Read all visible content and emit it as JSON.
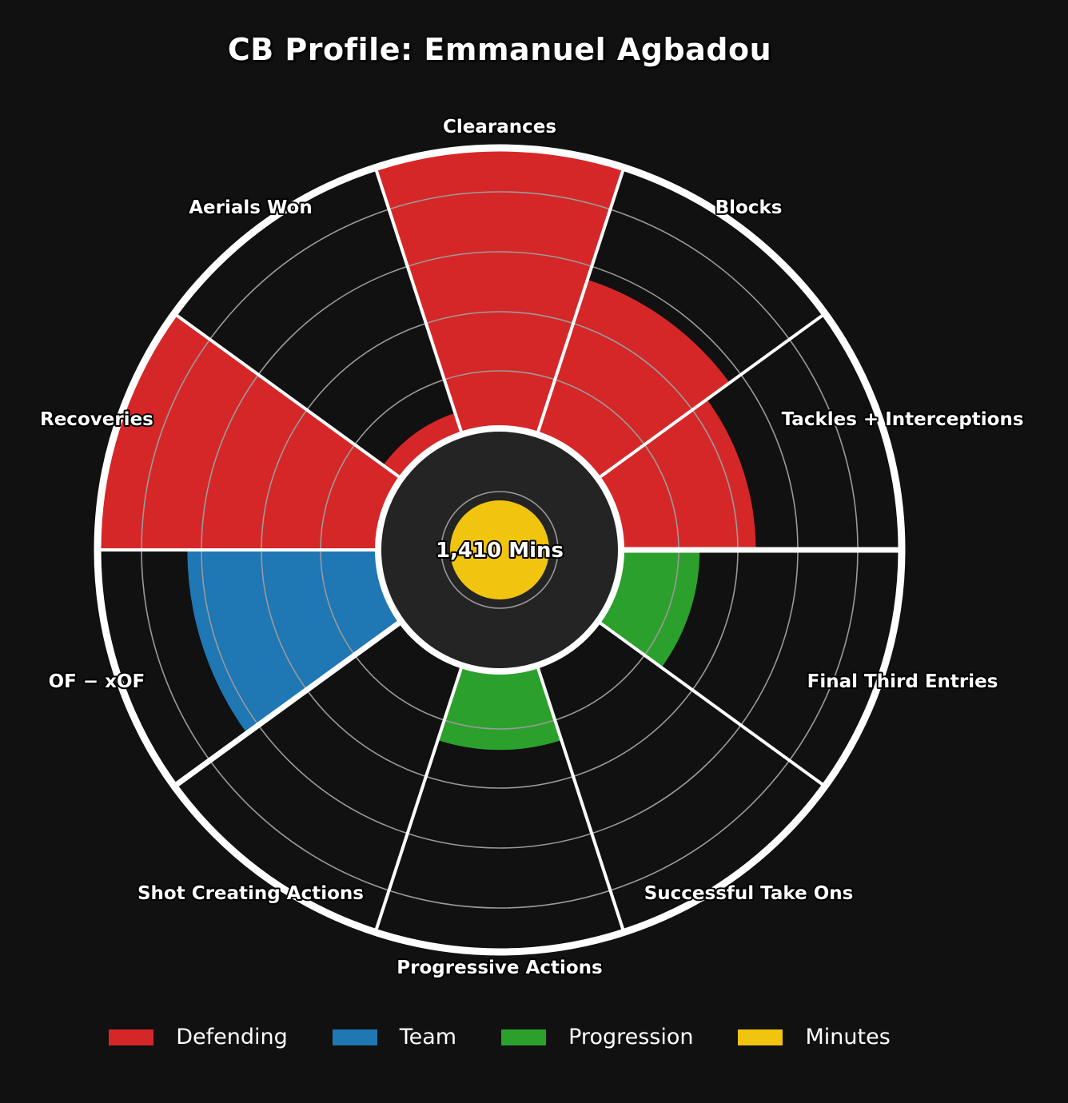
{
  "chart_data": {
    "type": "radar-bar",
    "title": "CB Profile: Emmanuel Agbadou",
    "center_label": "1,410 Mins",
    "minutes_value": 1410,
    "scale_max": 100,
    "categories": [
      {
        "name": "Clearances",
        "group": "Defending",
        "value": 100
      },
      {
        "name": "Blocks",
        "group": "Defending",
        "value": 58
      },
      {
        "name": "Tackles + Interceptions",
        "group": "Defending",
        "value": 48
      },
      {
        "name": "Final Third Entries",
        "group": "Progression",
        "value": 28
      },
      {
        "name": "Successful Take Ons",
        "group": "Progression",
        "value": 0
      },
      {
        "name": "Progressive Actions",
        "group": "Progression",
        "value": 28
      },
      {
        "name": "Shot Creating Actions",
        "group": "Team",
        "value": 0
      },
      {
        "name": "OF − xOF",
        "group": "Team",
        "value": 68
      },
      {
        "name": "Recoveries",
        "group": "Defending",
        "value": 100
      },
      {
        "name": "Aerials Won",
        "group": "Defending",
        "value": 8
      }
    ],
    "legend": [
      {
        "name": "Defending",
        "color": "#d62728"
      },
      {
        "name": "Team",
        "color": "#1f77b4"
      },
      {
        "name": "Progression",
        "color": "#2ca02c"
      },
      {
        "name": "Minutes",
        "color": "#f1c40f"
      }
    ],
    "grid": true
  }
}
